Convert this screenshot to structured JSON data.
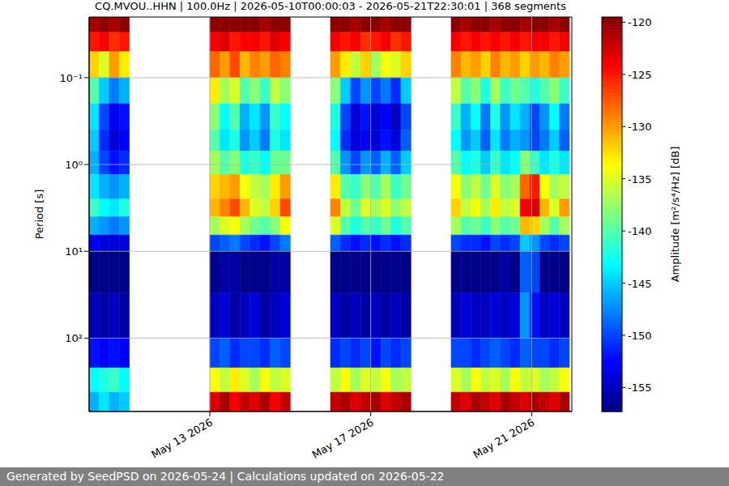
{
  "chart_data": {
    "type": "heatmap",
    "title": "CQ.MVOU..HHN | 100.0Hz | 2026-05-10T00:00:03 - 2026-05-21T22:30:01 | 368 segments",
    "y_label": "Period [s]",
    "annotations": [
      "Generated by SeedPSD on 2026-05-24 | Calculations updated on 2026-05-22"
    ],
    "log": "y",
    "grid": true,
    "xlim": [
      "2026-05-10T00:00",
      "2026-05-22T00:00"
    ],
    "xticks": [
      {
        "value": "2026-05-13T00:00",
        "label": "May 13 2026"
      },
      {
        "value": "2026-05-17T00:00",
        "label": "May 17 2026"
      },
      {
        "value": "2026-05-21T00:00",
        "label": "May 21 2026"
      }
    ],
    "ylim": [
      0.02,
      700
    ],
    "yticks": [
      {
        "value": 0.1,
        "label": "10⁻¹"
      },
      {
        "value": 1,
        "label": "10⁰"
      },
      {
        "value": 10,
        "label": "10¹"
      },
      {
        "value": 100,
        "label": "10²"
      }
    ],
    "y_bins": [
      0.02,
      0.03,
      0.05,
      0.1,
      0.2,
      0.4,
      0.7,
      1.3,
      2.5,
      4,
      6.5,
      10,
      30,
      100,
      220,
      420,
      700
    ],
    "colorbar": {
      "label": "Amplitude [m²/s⁴/Hz] [dB]",
      "range": [
        -157.3,
        -119.5
      ],
      "ticks": [
        -155,
        -150,
        -145,
        -140,
        -135,
        -130,
        -125,
        -120
      ]
    },
    "segments": [
      {
        "start": "2026-05-10T00:00",
        "end": "2026-05-11T00:00",
        "cells": [
          [
            -121,
            -120,
            -121,
            -120
          ],
          [
            -125,
            -124,
            -126,
            -125
          ],
          [
            -132,
            -135,
            -130,
            -133
          ],
          [
            -140,
            -145,
            -148,
            -146
          ],
          [
            -144,
            -150,
            -153,
            -152
          ],
          [
            -145,
            -151,
            -154,
            -153
          ],
          [
            -146,
            -150,
            -152,
            -151
          ],
          [
            -144,
            -146,
            -147,
            -146
          ],
          [
            -141,
            -143,
            -144,
            -142
          ],
          [
            -146,
            -147,
            -148,
            -147
          ],
          [
            -153,
            -154,
            -154,
            -154
          ],
          [
            -157,
            -157,
            -157,
            -157
          ],
          [
            -155,
            -156,
            -155,
            -156
          ],
          [
            -152,
            -153,
            -152,
            -153
          ],
          [
            -143,
            -142,
            -141,
            -143
          ],
          [
            -146,
            -144,
            -146,
            -145
          ]
        ]
      },
      {
        "start": "2026-05-13T00:00",
        "end": "2026-05-15T00:00",
        "cells": [
          [
            -120,
            -120,
            -120,
            -120,
            -120,
            -121,
            -120,
            -120
          ],
          [
            -124,
            -123,
            -125,
            -124,
            -124,
            -125,
            -123,
            -124
          ],
          [
            -128,
            -130,
            -127,
            -131,
            -129,
            -130,
            -128,
            -129
          ],
          [
            -133,
            -137,
            -135,
            -140,
            -138,
            -141,
            -136,
            -138
          ],
          [
            -138,
            -143,
            -140,
            -146,
            -144,
            -147,
            -141,
            -143
          ],
          [
            -140,
            -144,
            -142,
            -147,
            -145,
            -148,
            -142,
            -144
          ],
          [
            -137,
            -140,
            -138,
            -142,
            -141,
            -143,
            -139,
            -139
          ],
          [
            -132,
            -131,
            -130,
            -134,
            -136,
            -137,
            -133,
            -130
          ],
          [
            -131,
            -129,
            -127,
            -131,
            -135,
            -136,
            -132,
            -127
          ],
          [
            -137,
            -135,
            -134,
            -137,
            -139,
            -140,
            -138,
            -134
          ],
          [
            -150,
            -149,
            -148,
            -150,
            -151,
            -152,
            -150,
            -148
          ],
          [
            -157,
            -156,
            -156,
            -157,
            -157,
            -157,
            -156,
            -156
          ],
          [
            -155,
            -154,
            -156,
            -155,
            -154,
            -156,
            -155,
            -154
          ],
          [
            -150,
            -149,
            -151,
            -150,
            -150,
            -151,
            -149,
            -150
          ],
          [
            -134,
            -136,
            -133,
            -135,
            -137,
            -134,
            -136,
            -135
          ],
          [
            -123,
            -121,
            -124,
            -122,
            -123,
            -121,
            -124,
            -122
          ]
        ]
      },
      {
        "start": "2026-05-16T00:00",
        "end": "2026-05-18T00:00",
        "cells": [
          [
            -120,
            -120,
            -121,
            -120,
            -120,
            -121,
            -120,
            -120
          ],
          [
            -124,
            -125,
            -124,
            -126,
            -125,
            -124,
            -126,
            -125
          ],
          [
            -130,
            -133,
            -136,
            -132,
            -137,
            -134,
            -135,
            -132
          ],
          [
            -138,
            -145,
            -150,
            -147,
            -150,
            -148,
            -151,
            -145
          ],
          [
            -142,
            -150,
            -154,
            -152,
            -154,
            -153,
            -155,
            -150
          ],
          [
            -143,
            -151,
            -154,
            -153,
            -154,
            -152,
            -154,
            -149
          ],
          [
            -140,
            -147,
            -150,
            -147,
            -149,
            -146,
            -149,
            -145
          ],
          [
            -133,
            -140,
            -141,
            -138,
            -140,
            -137,
            -141,
            -139
          ],
          [
            -129,
            -136,
            -139,
            -135,
            -137,
            -135,
            -138,
            -136
          ],
          [
            -135,
            -140,
            -142,
            -140,
            -141,
            -139,
            -142,
            -140
          ],
          [
            -149,
            -151,
            -152,
            -151,
            -152,
            -151,
            -152,
            -151
          ],
          [
            -157,
            -157,
            -157,
            -157,
            -157,
            -157,
            -157,
            -157
          ],
          [
            -155,
            -156,
            -155,
            -156,
            -155,
            -156,
            -155,
            -156
          ],
          [
            -151,
            -150,
            -151,
            -150,
            -152,
            -150,
            -151,
            -150
          ],
          [
            -136,
            -134,
            -137,
            -135,
            -136,
            -134,
            -137,
            -136
          ],
          [
            -122,
            -121,
            -123,
            -122,
            -121,
            -123,
            -122,
            -121
          ]
        ]
      },
      {
        "start": "2026-05-19T00:00",
        "end": "2026-05-21T22:30",
        "cells": [
          [
            -120,
            -121,
            -120,
            -120,
            -121,
            -120,
            -120,
            -121,
            -120,
            -120,
            -121,
            -120
          ],
          [
            -124,
            -125,
            -124,
            -125,
            -124,
            -125,
            -124,
            -125,
            -124,
            -124,
            -125,
            -124
          ],
          [
            -129,
            -131,
            -130,
            -132,
            -129,
            -131,
            -130,
            -132,
            -130,
            -131,
            -129,
            -130
          ],
          [
            -136,
            -140,
            -138,
            -142,
            -137,
            -141,
            -139,
            -140,
            -142,
            -140,
            -138,
            -141
          ],
          [
            -141,
            -146,
            -143,
            -148,
            -142,
            -147,
            -144,
            -146,
            -150,
            -147,
            -143,
            -148
          ],
          [
            -143,
            -147,
            -145,
            -149,
            -144,
            -148,
            -146,
            -147,
            -150,
            -148,
            -145,
            -149
          ],
          [
            -140,
            -143,
            -142,
            -145,
            -141,
            -144,
            -143,
            -138,
            -141,
            -144,
            -142,
            -144
          ],
          [
            -134,
            -138,
            -136,
            -139,
            -135,
            -138,
            -137,
            -128,
            -125,
            -134,
            -137,
            -136
          ],
          [
            -132,
            -136,
            -134,
            -137,
            -133,
            -136,
            -135,
            -124,
            -123,
            -131,
            -135,
            -130
          ],
          [
            -137,
            -140,
            -139,
            -141,
            -138,
            -140,
            -139,
            -131,
            -132,
            -137,
            -140,
            -137
          ],
          [
            -150,
            -151,
            -151,
            -152,
            -150,
            -151,
            -150,
            -145,
            -147,
            -150,
            -151,
            -150
          ],
          [
            -157,
            -157,
            -157,
            -157,
            -157,
            -156,
            -157,
            -149,
            -150,
            -157,
            -157,
            -157
          ],
          [
            -155,
            -154,
            -155,
            -155,
            -154,
            -155,
            -154,
            -147,
            -152,
            -155,
            -154,
            -155
          ],
          [
            -150,
            -150,
            -151,
            -150,
            -149,
            -150,
            -151,
            -149,
            -150,
            -150,
            -151,
            -150
          ],
          [
            -135,
            -137,
            -134,
            -136,
            -135,
            -137,
            -134,
            -136,
            -135,
            -137,
            -136,
            -134
          ],
          [
            -122,
            -123,
            -121,
            -122,
            -123,
            -121,
            -122,
            -123,
            -121,
            -122,
            -123,
            -121
          ]
        ]
      }
    ]
  }
}
